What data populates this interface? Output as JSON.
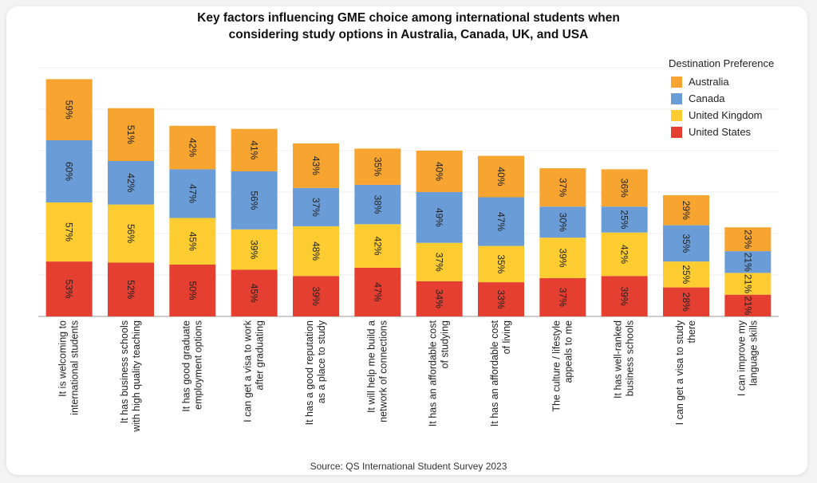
{
  "chart_data": {
    "type": "bar",
    "stacked": true,
    "title_lines": [
      "Key factors influencing GME choice among international students when",
      "considering study options in Australia, Canada, UK, and USA"
    ],
    "legend_title": "Destination Preference",
    "legend_placement": "top-right",
    "grid": true,
    "categories": [
      [
        "It is welcoming to",
        "international students"
      ],
      [
        "It has business schools",
        "with high quality teaching"
      ],
      [
        "It has good graduate",
        "employment options"
      ],
      [
        "I can get a visa to work",
        "after graduating"
      ],
      [
        "It has a good reputation",
        "as a place to study"
      ],
      [
        "It will help me build a",
        "network of connections"
      ],
      [
        "It has an affordable cost",
        "of studying"
      ],
      [
        "It has an affordable cost",
        "of living"
      ],
      [
        "The culture / lifestyle",
        "appeals to me"
      ],
      [
        "It has well-ranked",
        "business schools"
      ],
      [
        "I can get a visa to study",
        "there"
      ],
      [
        "I can improve my",
        "language skills"
      ]
    ],
    "series": [
      {
        "name": "United States",
        "color": "#e53f32",
        "values": [
          53,
          52,
          50,
          45,
          39,
          47,
          34,
          33,
          37,
          39,
          28,
          21
        ]
      },
      {
        "name": "United Kingdom",
        "color": "#fdcc30",
        "values": [
          57,
          56,
          45,
          39,
          48,
          42,
          37,
          35,
          39,
          42,
          25,
          21
        ]
      },
      {
        "name": "Canada",
        "color": "#6a9cd8",
        "values": [
          60,
          42,
          47,
          56,
          37,
          38,
          49,
          47,
          30,
          25,
          35,
          21
        ]
      },
      {
        "name": "Australia",
        "color": "#f7a430",
        "values": [
          59,
          51,
          42,
          41,
          43,
          35,
          40,
          40,
          37,
          36,
          29,
          23
        ]
      }
    ],
    "legend_order": [
      "Australia",
      "Canada",
      "United Kingdom",
      "United States"
    ],
    "value_suffix": "%",
    "ylim": [
      0,
      240
    ],
    "source": "Source: QS International Student Survey 2023"
  }
}
